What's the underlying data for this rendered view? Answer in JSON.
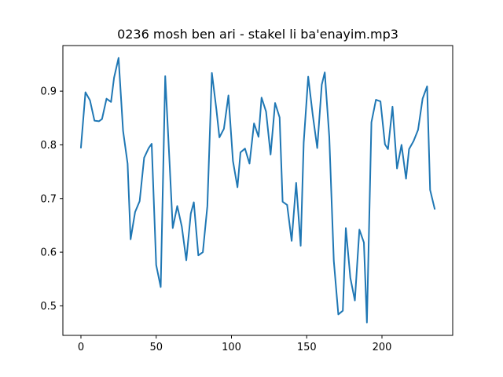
{
  "chart_data": {
    "type": "line",
    "title": "0236 mosh ben ari - stakel li ba'enayim.mp3",
    "xlabel": "",
    "ylabel": "",
    "xlim": [
      -12,
      247
    ],
    "ylim": [
      0.445,
      0.985
    ],
    "xticks": [
      0,
      50,
      100,
      150,
      200
    ],
    "yticks": [
      0.5,
      0.6,
      0.7,
      0.8,
      0.9
    ],
    "ytick_labels": [
      "0.5",
      "0.6",
      "0.7",
      "0.8",
      "0.9"
    ],
    "grid": false,
    "line_color": "#1f77b4",
    "series": [
      {
        "x": [
          0,
          3,
          6,
          9,
          12,
          14,
          17,
          20,
          22,
          25,
          28,
          31,
          33,
          36,
          39,
          42,
          45,
          47,
          50,
          53,
          56,
          59,
          61,
          64,
          67,
          70,
          73,
          75,
          78,
          81,
          84,
          87,
          90,
          92,
          95,
          98,
          101,
          104,
          106,
          109,
          112,
          115,
          118,
          120,
          123,
          126,
          129,
          132,
          134,
          137,
          140,
          143,
          146,
          148,
          151,
          154,
          157,
          160,
          162,
          165,
          168,
          171,
          174,
          176,
          179,
          182,
          185,
          188,
          190,
          193,
          196,
          199,
          202,
          204,
          207,
          210,
          213,
          216,
          218,
          221,
          224,
          227,
          230,
          232,
          235
        ],
        "values": [
          0.795,
          0.898,
          0.883,
          0.845,
          0.844,
          0.848,
          0.886,
          0.88,
          0.925,
          0.962,
          0.826,
          0.765,
          0.624,
          0.675,
          0.695,
          0.776,
          0.794,
          0.802,
          0.576,
          0.535,
          0.928,
          0.76,
          0.645,
          0.686,
          0.648,
          0.585,
          0.672,
          0.693,
          0.594,
          0.6,
          0.686,
          0.934,
          0.866,
          0.814,
          0.83,
          0.892,
          0.77,
          0.721,
          0.786,
          0.793,
          0.765,
          0.84,
          0.815,
          0.888,
          0.862,
          0.782,
          0.878,
          0.851,
          0.694,
          0.688,
          0.621,
          0.729,
          0.612,
          0.804,
          0.927,
          0.856,
          0.794,
          0.912,
          0.935,
          0.815,
          0.584,
          0.484,
          0.491,
          0.645,
          0.552,
          0.51,
          0.642,
          0.618,
          0.469,
          0.842,
          0.884,
          0.881,
          0.801,
          0.792,
          0.871,
          0.756,
          0.8,
          0.737,
          0.792,
          0.807,
          0.828,
          0.886,
          0.909,
          0.716,
          0.681
        ]
      }
    ]
  }
}
